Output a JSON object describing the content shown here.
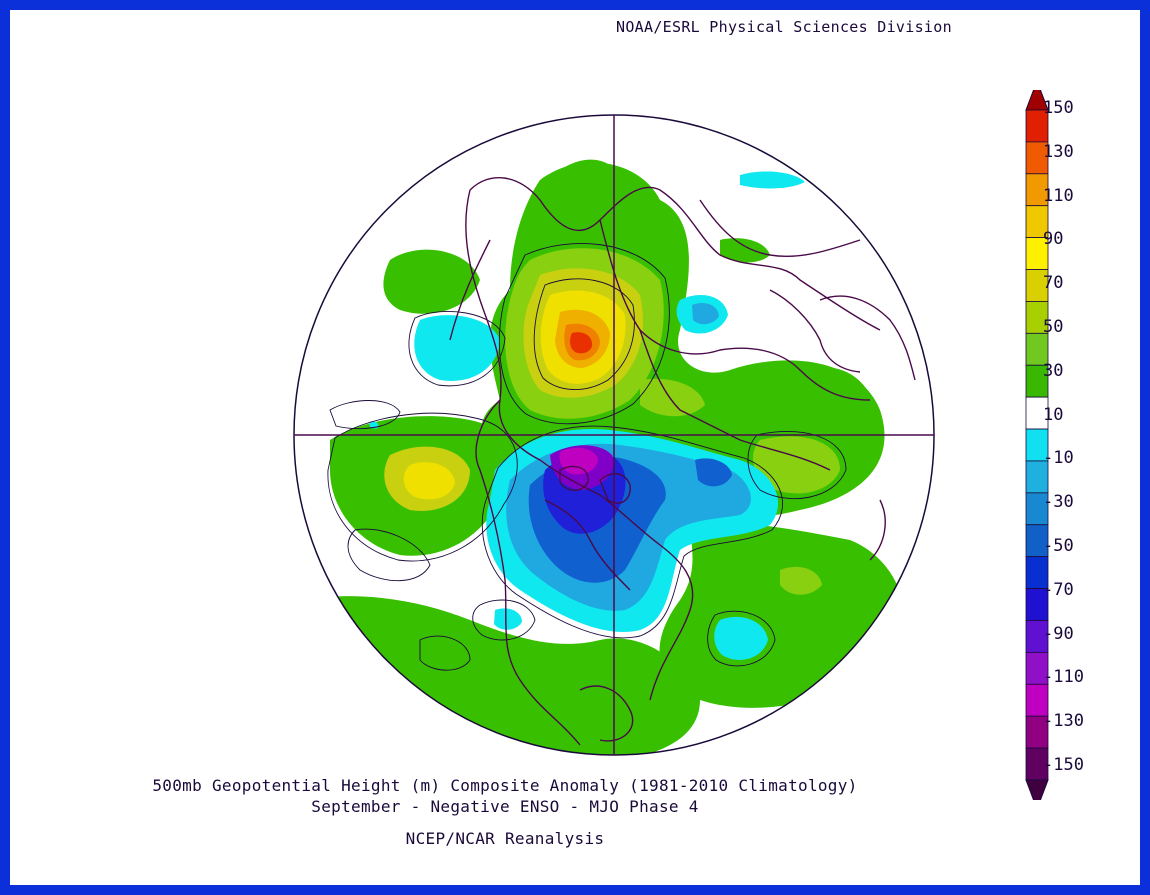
{
  "header": {
    "credit": "NOAA/ESRL Physical Sciences Division"
  },
  "titles": {
    "line1": "500mb Geopotential Height (m) Composite Anomaly (1981-2010 Climatology)",
    "line2": "September - Negative ENSO - MJO Phase 4",
    "line3": "NCEP/NCAR Reanalysis"
  },
  "colorbar": {
    "labels": [
      "150",
      "130",
      "110",
      "90",
      "70",
      "50",
      "30",
      "10",
      "-10",
      "-30",
      "-50",
      "-70",
      "-90",
      "-110",
      "-130",
      "-150"
    ],
    "colors": [
      "#a00000",
      "#e02000",
      "#f05a00",
      "#f09a00",
      "#f0c800",
      "#fff000",
      "#d8d000",
      "#a8d000",
      "#70c820",
      "#38b800",
      "#ffffff",
      "#10e0f0",
      "#20b0e0",
      "#1888d0",
      "#1060c8",
      "#0830d0",
      "#2010d0",
      "#6010d0",
      "#9010c8",
      "#c000c0",
      "#900080",
      "#600060",
      "#400040"
    ]
  },
  "map": {
    "projection": "north-polar-stereographic",
    "palette": {
      "green": "#38c000",
      "light_green": "#88d010",
      "yellow_green": "#c8d010",
      "yellow": "#f0e000",
      "orange": "#f08000",
      "red_orange": "#e83000",
      "cyan": "#10e8f0",
      "light_blue": "#20a8e0",
      "blue": "#1060d0",
      "deep_blue": "#2020d8",
      "purple": "#8000c8",
      "magenta": "#c000c0",
      "coast": "#4a0a4a"
    }
  }
}
